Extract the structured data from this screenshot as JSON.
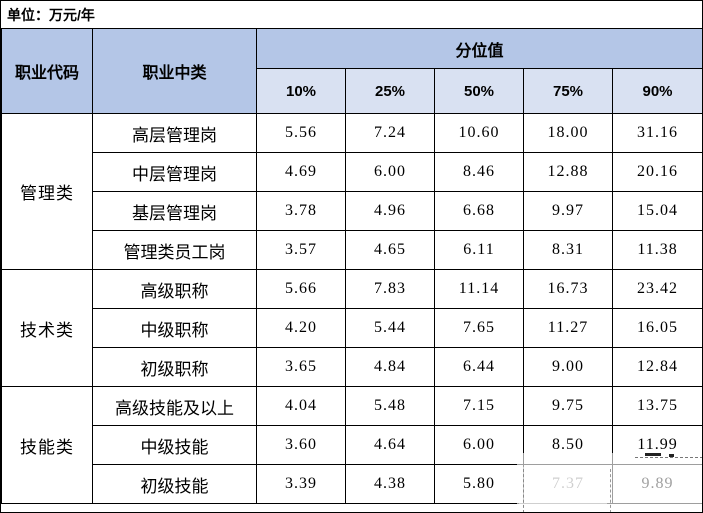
{
  "title_bar": {
    "unit_label": "单位：万元/年"
  },
  "table": {
    "headers": {
      "occupation_code": "职业代码",
      "occupation_mid": "职业中类",
      "percentile_group": "分位值"
    },
    "percentiles": [
      "10%",
      "25%",
      "50%",
      "75%",
      "90%"
    ],
    "groups": [
      {
        "code": "管理类",
        "rows": [
          {
            "label": "高层管理岗",
            "values": [
              "5.56",
              "7.24",
              "10.60",
              "18.00",
              "31.16"
            ]
          },
          {
            "label": "中层管理岗",
            "values": [
              "4.69",
              "6.00",
              "8.46",
              "12.88",
              "20.16"
            ]
          },
          {
            "label": "基层管理岗",
            "values": [
              "3.78",
              "4.96",
              "6.68",
              "9.97",
              "15.04"
            ]
          },
          {
            "label": "管理类员工岗",
            "values": [
              "3.57",
              "4.65",
              "6.11",
              "8.31",
              "11.38"
            ]
          }
        ]
      },
      {
        "code": "技术类",
        "rows": [
          {
            "label": "高级职称",
            "values": [
              "5.66",
              "7.83",
              "11.14",
              "16.73",
              "23.42"
            ]
          },
          {
            "label": "中级职称",
            "values": [
              "4.20",
              "5.44",
              "7.65",
              "11.27",
              "16.05"
            ]
          },
          {
            "label": "初级职称",
            "values": [
              "3.65",
              "4.84",
              "6.44",
              "9.00",
              "12.84"
            ]
          }
        ]
      },
      {
        "code": "技能类",
        "rows": [
          {
            "label": "高级技能及以上",
            "values": [
              "4.04",
              "5.48",
              "7.15",
              "9.75",
              "13.75"
            ]
          },
          {
            "label": "中级技能",
            "values": [
              "3.60",
              "4.64",
              "6.00",
              "8.50",
              "11.99"
            ]
          },
          {
            "label": "初级技能",
            "values": [
              "3.39",
              "4.38",
              "5.80",
              "7.37",
              "9.89"
            ]
          }
        ]
      }
    ]
  },
  "colors": {
    "header_blue": "#b4c6e7",
    "subheader_blue": "#d9e1f2",
    "border": "#000000"
  }
}
